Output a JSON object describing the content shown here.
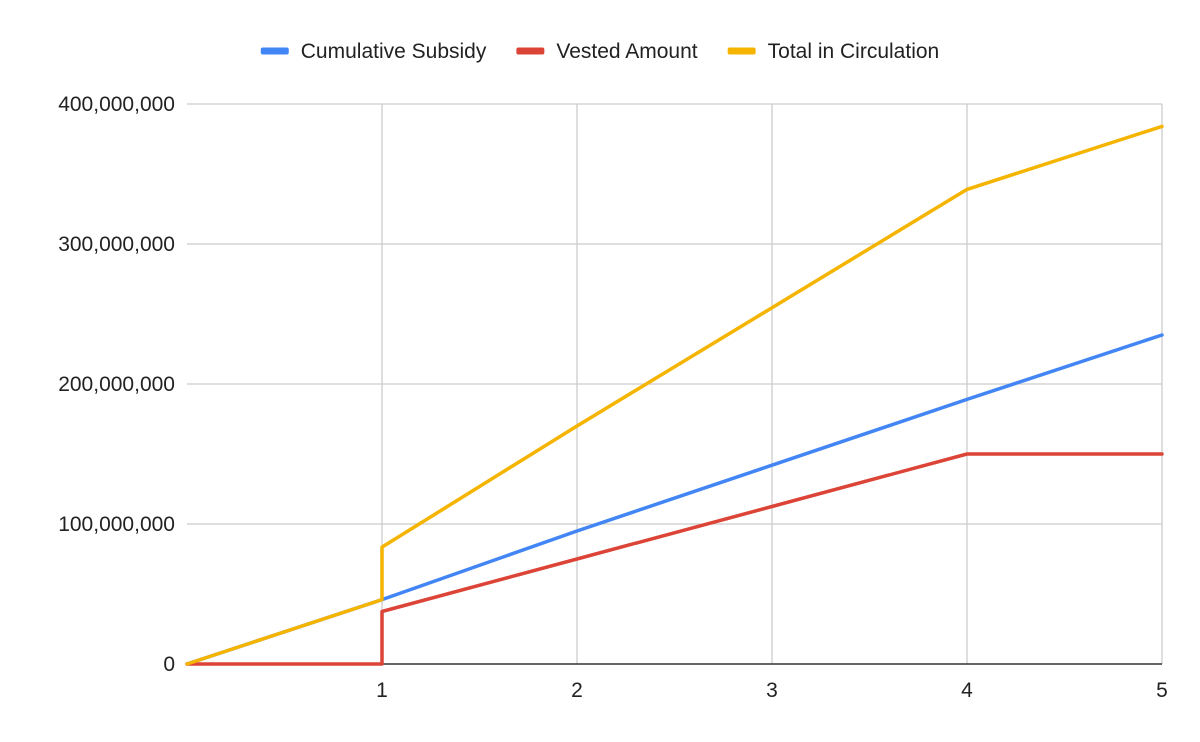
{
  "chart_data": {
    "type": "line",
    "title": "",
    "xlabel": "",
    "ylabel": "",
    "x": [
      0,
      1,
      1,
      2,
      3,
      4,
      5
    ],
    "xlim": [
      0,
      5
    ],
    "ylim": [
      0,
      400000000
    ],
    "x_ticks": [
      "1",
      "2",
      "3",
      "4",
      "5"
    ],
    "y_ticks": [
      "0",
      "100,000,000",
      "200,000,000",
      "300,000,000",
      "400,000,000"
    ],
    "grid": true,
    "legend_position": "top",
    "series": [
      {
        "name": "Cumulative Subsidy",
        "color": "#4285F4",
        "points": [
          [
            0,
            0
          ],
          [
            1,
            46000000
          ],
          [
            2,
            95000000
          ],
          [
            3,
            142000000
          ],
          [
            4,
            189000000
          ],
          [
            5,
            235000000
          ]
        ]
      },
      {
        "name": "Vested Amount",
        "color": "#DB4437",
        "points": [
          [
            0,
            0
          ],
          [
            1,
            0
          ],
          [
            1,
            37500000
          ],
          [
            2,
            75000000
          ],
          [
            3,
            112500000
          ],
          [
            4,
            150000000
          ],
          [
            5,
            150000000
          ]
        ]
      },
      {
        "name": "Total in Circulation",
        "color": "#F4B400",
        "points": [
          [
            0,
            0
          ],
          [
            1,
            46000000
          ],
          [
            1,
            83500000
          ],
          [
            2,
            170000000
          ],
          [
            3,
            254500000
          ],
          [
            4,
            339000000
          ],
          [
            5,
            384000000
          ]
        ]
      }
    ]
  }
}
